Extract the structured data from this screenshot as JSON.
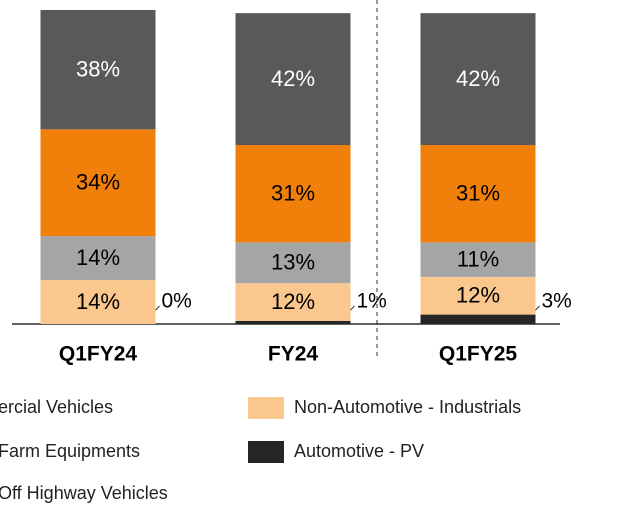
{
  "chart_data": {
    "type": "bar",
    "stacked": true,
    "categories": [
      "Q1FY24",
      "FY24",
      "Q1FY25"
    ],
    "ylim": [
      0,
      100
    ],
    "series": [
      {
        "name": "Automotive - PV",
        "color": "#262626",
        "values": [
          0,
          1,
          3
        ],
        "value_labels": [
          "0%",
          "1%",
          "3%"
        ]
      },
      {
        "name": "Non-Automotive - Industrials",
        "color": "#fac78e",
        "values": [
          14,
          12,
          12
        ],
        "value_labels": [
          "14%",
          "12%",
          "12%"
        ]
      },
      {
        "name": "Off Highway Vehicles",
        "color": "#a5a5a5",
        "values": [
          14,
          13,
          11
        ],
        "value_labels": [
          "14%",
          "13%",
          "11%"
        ]
      },
      {
        "name": "Farm Equipments",
        "color": "#f08009",
        "values": [
          34,
          31,
          31
        ],
        "value_labels": [
          "34%",
          "31%",
          "31%"
        ]
      },
      {
        "name": "ercial Vehicles",
        "color": "#595959",
        "values": [
          38,
          42,
          42
        ],
        "value_labels": [
          "38%",
          "42%",
          "42%"
        ]
      }
    ]
  }
}
